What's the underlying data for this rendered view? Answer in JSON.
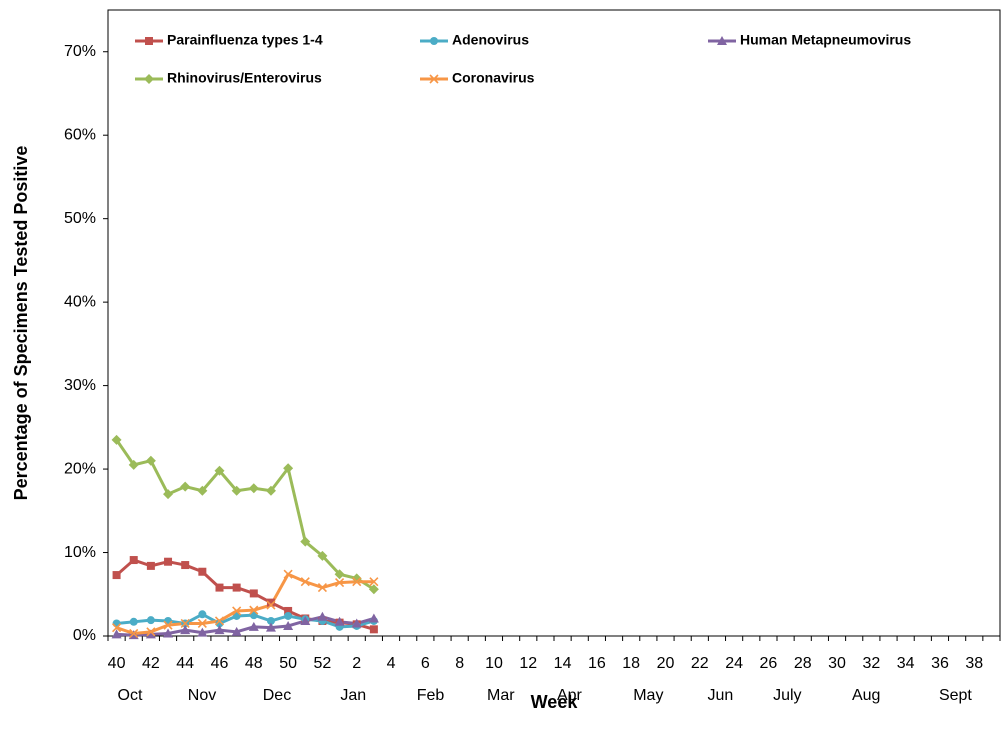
{
  "chart_data": {
    "type": "line",
    "y_axis_title": "Percentage of Specimens Tested Positive",
    "x_axis_title": "Week",
    "categories": [
      "40",
      null,
      "42",
      null,
      "44",
      null,
      "46",
      null,
      "48",
      null,
      "50",
      null,
      "52",
      null,
      "2",
      null,
      "4",
      null,
      "6",
      null,
      "8",
      null,
      "10",
      null,
      "12",
      null,
      "14",
      null,
      "16",
      null,
      "18",
      null,
      "20",
      null,
      "22",
      null,
      "24",
      null,
      "26",
      null,
      "28",
      null,
      "30",
      null,
      "32",
      null,
      "34",
      null,
      "36",
      null,
      "38",
      null
    ],
    "month_labels": [
      "Oct",
      "Nov",
      "Dec",
      "Jan",
      "Feb",
      "Mar",
      "Apr",
      "May",
      "Jun",
      "July",
      "Aug",
      "Sept"
    ],
    "ylim": [
      0,
      75
    ],
    "yticks": [
      {
        "value": 0,
        "label": "0%"
      },
      {
        "value": 10,
        "label": "10%"
      },
      {
        "value": 20,
        "label": "20%"
      },
      {
        "value": 30,
        "label": "30%"
      },
      {
        "value": 40,
        "label": "40%"
      },
      {
        "value": 50,
        "label": "50%"
      },
      {
        "value": 60,
        "label": "60%"
      },
      {
        "value": 70,
        "label": "70%"
      }
    ],
    "grid": false,
    "series": [
      {
        "name": "Parainfluenza types 1-4",
        "color": "#c0504d",
        "marker": "square",
        "values": [
          7.3,
          9.1,
          8.4,
          8.9,
          8.5,
          7.7,
          5.8,
          5.8,
          5.1,
          4.0,
          3.0,
          2.1,
          1.8,
          1.6,
          1.4,
          0.8,
          null,
          null,
          null,
          null,
          null,
          null,
          null,
          null,
          null,
          null,
          null,
          null,
          null,
          null,
          null,
          null,
          null,
          null,
          null,
          null,
          null,
          null,
          null,
          null,
          null,
          null,
          null,
          null,
          null,
          null,
          null,
          null,
          null,
          null,
          null,
          null
        ]
      },
      {
        "name": "Adenovirus",
        "color": "#4bacc6",
        "marker": "circle",
        "values": [
          1.5,
          1.7,
          1.9,
          1.8,
          1.5,
          2.6,
          1.5,
          2.4,
          2.5,
          1.8,
          2.4,
          2.0,
          1.8,
          1.1,
          1.2,
          1.8,
          null,
          null,
          null,
          null,
          null,
          null,
          null,
          null,
          null,
          null,
          null,
          null,
          null,
          null,
          null,
          null,
          null,
          null,
          null,
          null,
          null,
          null,
          null,
          null,
          null,
          null,
          null,
          null,
          null,
          null,
          null,
          null,
          null,
          null,
          null,
          null
        ]
      },
      {
        "name": "Human Metapneumovirus",
        "color": "#8064a2",
        "marker": "triangle",
        "values": [
          0.2,
          0.1,
          0.2,
          0.3,
          0.7,
          0.4,
          0.7,
          0.5,
          1.1,
          1.0,
          1.2,
          1.8,
          2.3,
          1.7,
          1.5,
          2.1,
          null,
          null,
          null,
          null,
          null,
          null,
          null,
          null,
          null,
          null,
          null,
          null,
          null,
          null,
          null,
          null,
          null,
          null,
          null,
          null,
          null,
          null,
          null,
          null,
          null,
          null,
          null,
          null,
          null,
          null,
          null,
          null,
          null,
          null,
          null,
          null
        ]
      },
      {
        "name": "Rhinovirus/Enterovirus",
        "color": "#9bbb59",
        "marker": "diamond",
        "values": [
          23.5,
          20.5,
          21.0,
          17.0,
          17.9,
          17.4,
          19.8,
          17.4,
          17.7,
          17.4,
          20.1,
          11.3,
          9.6,
          7.4,
          6.9,
          5.6,
          null,
          null,
          null,
          null,
          null,
          null,
          null,
          null,
          null,
          null,
          null,
          null,
          null,
          null,
          null,
          null,
          null,
          null,
          null,
          null,
          null,
          null,
          null,
          null,
          null,
          null,
          null,
          null,
          null,
          null,
          null,
          null,
          null,
          null,
          null,
          null
        ]
      },
      {
        "name": "Coronavirus",
        "color": "#f79646",
        "marker": "x",
        "values": [
          1.0,
          0.3,
          0.5,
          1.3,
          1.5,
          1.5,
          1.8,
          3.0,
          3.1,
          3.7,
          7.4,
          6.5,
          5.8,
          6.4,
          6.5,
          6.5,
          null,
          null,
          null,
          null,
          null,
          null,
          null,
          null,
          null,
          null,
          null,
          null,
          null,
          null,
          null,
          null,
          null,
          null,
          null,
          null,
          null,
          null,
          null,
          null,
          null,
          null,
          null,
          null,
          null,
          null,
          null,
          null,
          null,
          null,
          null,
          null
        ]
      }
    ]
  }
}
